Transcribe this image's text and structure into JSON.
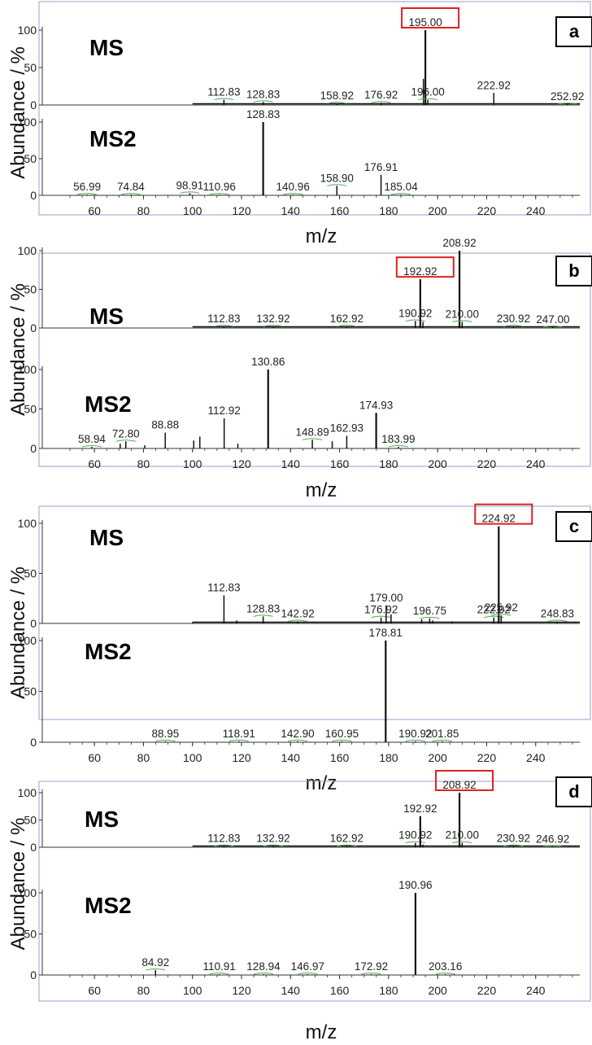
{
  "chart_data": [
    {
      "type": "bar",
      "panel": "a",
      "ylabel": "Abundance / %",
      "xlabel": "m/z",
      "xlim": [
        50,
        258
      ],
      "xticks": [
        60,
        80,
        100,
        120,
        140,
        160,
        180,
        200,
        220,
        240
      ],
      "ylim": [
        0,
        100
      ],
      "yticks": [
        0,
        50,
        100
      ],
      "series": [
        {
          "title": "MS",
          "highlight": "195.00",
          "peaks": [
            {
              "x": 112.83,
              "y": 7,
              "label": "112.83"
            },
            {
              "x": 128.83,
              "y": 4,
              "label": "128.83"
            },
            {
              "x": 158.92,
              "y": 2,
              "label": "158.92"
            },
            {
              "x": 176.92,
              "y": 3,
              "label": "176.92"
            },
            {
              "x": 194.2,
              "y": 35,
              "label": ""
            },
            {
              "x": 195.0,
              "y": 100,
              "label": "195.00"
            },
            {
              "x": 196.0,
              "y": 7,
              "label": "196.00"
            },
            {
              "x": 222.92,
              "y": 16,
              "label": "222.92"
            },
            {
              "x": 252.92,
              "y": 1,
              "label": "252.92"
            }
          ]
        },
        {
          "title": "MS2",
          "peaks": [
            {
              "x": 56.99,
              "y": 1,
              "label": "56.99"
            },
            {
              "x": 74.84,
              "y": 1,
              "label": "74.84"
            },
            {
              "x": 98.91,
              "y": 3,
              "label": "98.91"
            },
            {
              "x": 110.96,
              "y": 1,
              "label": "110.96"
            },
            {
              "x": 128.83,
              "y": 100,
              "label": "128.83"
            },
            {
              "x": 140.96,
              "y": 1,
              "label": "140.96"
            },
            {
              "x": 158.9,
              "y": 13,
              "label": "158.90"
            },
            {
              "x": 176.91,
              "y": 28,
              "label": "176.91"
            },
            {
              "x": 185.04,
              "y": 1,
              "label": "185.04"
            }
          ]
        }
      ]
    },
    {
      "type": "bar",
      "panel": "b",
      "ylabel": "Abundance / %",
      "xlabel": "m/z",
      "xlim": [
        50,
        258
      ],
      "xticks": [
        60,
        80,
        100,
        120,
        140,
        160,
        180,
        200,
        220,
        240
      ],
      "ylim": [
        0,
        100
      ],
      "yticks": [
        0,
        50,
        100
      ],
      "series": [
        {
          "title": "MS",
          "highlight": "192.92",
          "peaks": [
            {
              "x": 112.83,
              "y": 2,
              "label": "112.83"
            },
            {
              "x": 132.92,
              "y": 2,
              "label": "132.92"
            },
            {
              "x": 162.92,
              "y": 2,
              "label": "162.92"
            },
            {
              "x": 190.92,
              "y": 9,
              "label": "190.92"
            },
            {
              "x": 192.92,
              "y": 63,
              "label": "192.92"
            },
            {
              "x": 194.0,
              "y": 8,
              "label": ""
            },
            {
              "x": 208.92,
              "y": 100,
              "label": "208.92"
            },
            {
              "x": 210.0,
              "y": 8,
              "label": "210.00"
            },
            {
              "x": 230.92,
              "y": 2,
              "label": "230.92"
            },
            {
              "x": 247.0,
              "y": 1,
              "label": "247.00"
            }
          ]
        },
        {
          "title": "MS2",
          "peaks": [
            {
              "x": 58.94,
              "y": 2,
              "label": "58.94"
            },
            {
              "x": 70.5,
              "y": 6,
              "label": ""
            },
            {
              "x": 72.8,
              "y": 9,
              "label": "72.80"
            },
            {
              "x": 80.5,
              "y": 4,
              "label": ""
            },
            {
              "x": 88.88,
              "y": 20,
              "label": "88.88"
            },
            {
              "x": 100.5,
              "y": 10,
              "label": ""
            },
            {
              "x": 103.0,
              "y": 15,
              "label": ""
            },
            {
              "x": 112.92,
              "y": 38,
              "label": "112.92"
            },
            {
              "x": 118.5,
              "y": 6,
              "label": ""
            },
            {
              "x": 130.86,
              "y": 100,
              "label": "130.86"
            },
            {
              "x": 148.89,
              "y": 11,
              "label": "148.89"
            },
            {
              "x": 157.0,
              "y": 9,
              "label": ""
            },
            {
              "x": 162.93,
              "y": 16,
              "label": "162.93"
            },
            {
              "x": 174.93,
              "y": 45,
              "label": "174.93"
            },
            {
              "x": 183.99,
              "y": 2,
              "label": "183.99"
            }
          ]
        }
      ]
    },
    {
      "type": "bar",
      "panel": "c",
      "ylabel": "Abundance / %",
      "xlabel": "m/z",
      "xlim": [
        50,
        258
      ],
      "xticks": [
        60,
        80,
        100,
        120,
        140,
        160,
        180,
        200,
        220,
        240
      ],
      "ylim": [
        0,
        100
      ],
      "yticks": [
        0,
        50,
        100
      ],
      "series": [
        {
          "title": "MS",
          "highlight": "224.92",
          "peaks": [
            {
              "x": 100.0,
              "y": 1,
              "label": ""
            },
            {
              "x": 112.83,
              "y": 28,
              "label": "112.83"
            },
            {
              "x": 118.0,
              "y": 3,
              "label": ""
            },
            {
              "x": 128.83,
              "y": 7,
              "label": "128.83"
            },
            {
              "x": 142.92,
              "y": 2,
              "label": "142.92"
            },
            {
              "x": 176.92,
              "y": 6,
              "label": "176.92"
            },
            {
              "x": 179.0,
              "y": 18,
              "label": "179.00"
            },
            {
              "x": 181.0,
              "y": 9,
              "label": ""
            },
            {
              "x": 193.5,
              "y": 4,
              "label": ""
            },
            {
              "x": 196.75,
              "y": 5,
              "label": "196.75"
            },
            {
              "x": 198.0,
              "y": 3,
              "label": ""
            },
            {
              "x": 206.0,
              "y": 2,
              "label": ""
            },
            {
              "x": 222.92,
              "y": 6,
              "label": "222.92"
            },
            {
              "x": 224.92,
              "y": 97,
              "label": "224.92"
            },
            {
              "x": 225.92,
              "y": 8,
              "label": "225.92"
            },
            {
              "x": 248.83,
              "y": 2,
              "label": "248.83"
            }
          ]
        },
        {
          "title": "MS2",
          "peaks": [
            {
              "x": 88.95,
              "y": 1,
              "label": "88.95"
            },
            {
              "x": 118.91,
              "y": 1,
              "label": "118.91"
            },
            {
              "x": 142.9,
              "y": 1,
              "label": "142.90"
            },
            {
              "x": 160.95,
              "y": 1,
              "label": "160.95"
            },
            {
              "x": 178.81,
              "y": 100,
              "label": "178.81"
            },
            {
              "x": 190.92,
              "y": 1,
              "label": "190.92"
            },
            {
              "x": 201.85,
              "y": 1,
              "label": "201.85"
            }
          ]
        }
      ]
    },
    {
      "type": "bar",
      "panel": "d",
      "ylabel": "Abundance / %",
      "xlabel": "m/z",
      "xlim": [
        50,
        258
      ],
      "xticks": [
        60,
        80,
        100,
        120,
        140,
        160,
        180,
        200,
        220,
        240
      ],
      "ylim": [
        0,
        100
      ],
      "yticks": [
        0,
        50,
        100
      ],
      "series": [
        {
          "title": "MS",
          "highlight": "208.92",
          "peaks": [
            {
              "x": 112.83,
              "y": 2,
              "label": "112.83"
            },
            {
              "x": 132.92,
              "y": 2,
              "label": "132.92"
            },
            {
              "x": 162.92,
              "y": 2,
              "label": "162.92"
            },
            {
              "x": 190.92,
              "y": 8,
              "label": "190.92"
            },
            {
              "x": 192.92,
              "y": 57,
              "label": "192.92"
            },
            {
              "x": 194.0,
              "y": 5,
              "label": ""
            },
            {
              "x": 208.92,
              "y": 100,
              "label": "208.92"
            },
            {
              "x": 210.0,
              "y": 8,
              "label": "210.00"
            },
            {
              "x": 230.92,
              "y": 2,
              "label": "230.92"
            },
            {
              "x": 246.92,
              "y": 1,
              "label": "246.92"
            }
          ]
        },
        {
          "title": "MS2",
          "peaks": [
            {
              "x": 84.92,
              "y": 6,
              "label": "84.92"
            },
            {
              "x": 110.91,
              "y": 1,
              "label": "110.91"
            },
            {
              "x": 128.94,
              "y": 1,
              "label": "128.94"
            },
            {
              "x": 146.97,
              "y": 1,
              "label": "146.97"
            },
            {
              "x": 172.92,
              "y": 1,
              "label": "172.92"
            },
            {
              "x": 190.96,
              "y": 100,
              "label": "190.96"
            },
            {
              "x": 203.16,
              "y": 1,
              "label": "203.16"
            }
          ]
        }
      ]
    }
  ],
  "colors": {
    "axis": "#333333",
    "peak": "#111111",
    "frame": "#9aa0c8",
    "highlight_box": "#e02020",
    "label_mark": "#4caf50"
  }
}
